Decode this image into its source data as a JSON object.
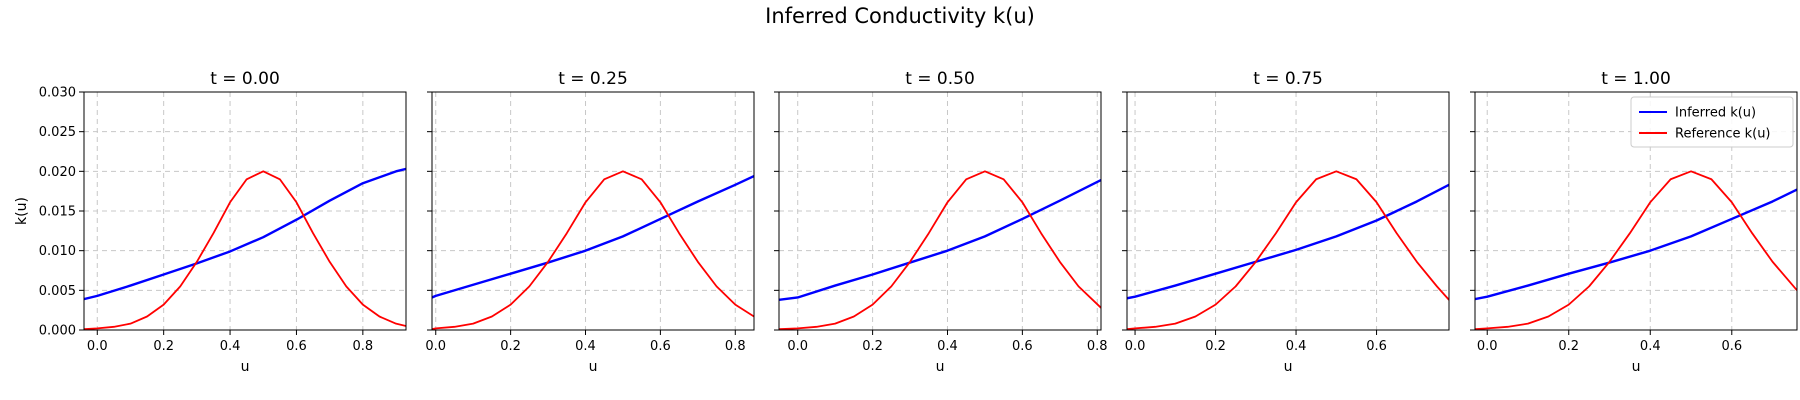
{
  "figure_title": "Inferred Conductivity k(u)",
  "colors": {
    "inferred": "#0000ff",
    "reference": "#ff0000",
    "grid": "#c8c8c8"
  },
  "chart_data": [
    {
      "type": "line",
      "title": "t = 0.00",
      "xlabel": "u",
      "ylabel": "k(u)",
      "xlim": [
        -0.04,
        0.93
      ],
      "ylim": [
        0,
        0.03
      ],
      "xticks": [
        "0.0",
        "0.2",
        "0.4",
        "0.6",
        "0.8"
      ],
      "yticks": [
        "0.000",
        "0.005",
        "0.010",
        "0.015",
        "0.020",
        "0.025",
        "0.030"
      ],
      "grid": true,
      "series": [
        {
          "name": "Inferred k(u)",
          "color": "#0000ff",
          "x": [
            -0.04,
            0.0,
            0.1,
            0.2,
            0.3,
            0.4,
            0.5,
            0.6,
            0.7,
            0.8,
            0.9,
            0.93
          ],
          "y": [
            0.0039,
            0.0043,
            0.0056,
            0.007,
            0.0084,
            0.0099,
            0.0117,
            0.0139,
            0.0163,
            0.0185,
            0.02,
            0.0203
          ]
        },
        {
          "name": "Reference k(u)",
          "color": "#ff0000",
          "x": [
            -0.04,
            0.0,
            0.05,
            0.1,
            0.15,
            0.2,
            0.25,
            0.3,
            0.35,
            0.4,
            0.45,
            0.5,
            0.55,
            0.6,
            0.65,
            0.7,
            0.75,
            0.8,
            0.85,
            0.9,
            0.93
          ],
          "y": [
            0.0001,
            0.0002,
            0.0004,
            0.0008,
            0.0017,
            0.0032,
            0.0055,
            0.0086,
            0.0122,
            0.0161,
            0.019,
            0.02,
            0.019,
            0.0161,
            0.0122,
            0.0086,
            0.0055,
            0.0032,
            0.0017,
            0.0008,
            0.0005
          ]
        }
      ]
    },
    {
      "type": "line",
      "title": "t = 0.25",
      "xlabel": "u",
      "ylabel": "",
      "xlim": [
        -0.01,
        0.85
      ],
      "ylim": [
        0,
        0.03
      ],
      "xticks": [
        "0.0",
        "0.2",
        "0.4",
        "0.6",
        "0.8"
      ],
      "yticks": [
        "",
        "",
        "",
        "",
        "",
        "",
        ""
      ],
      "grid": true,
      "series": [
        {
          "name": "Inferred k(u)",
          "color": "#0000ff",
          "x": [
            -0.01,
            0.0,
            0.1,
            0.2,
            0.3,
            0.4,
            0.5,
            0.6,
            0.7,
            0.8,
            0.85
          ],
          "y": [
            0.0041,
            0.0043,
            0.0057,
            0.0071,
            0.0085,
            0.01,
            0.0118,
            0.014,
            0.0162,
            0.0183,
            0.0194
          ]
        },
        {
          "name": "Reference k(u)",
          "color": "#ff0000",
          "x": [
            -0.01,
            0.0,
            0.05,
            0.1,
            0.15,
            0.2,
            0.25,
            0.3,
            0.35,
            0.4,
            0.45,
            0.5,
            0.55,
            0.6,
            0.65,
            0.7,
            0.75,
            0.8,
            0.85
          ],
          "y": [
            0.0001,
            0.0002,
            0.0004,
            0.0008,
            0.0017,
            0.0032,
            0.0055,
            0.0086,
            0.0122,
            0.0161,
            0.019,
            0.02,
            0.019,
            0.0161,
            0.0122,
            0.0086,
            0.0055,
            0.0032,
            0.0017
          ]
        }
      ]
    },
    {
      "type": "line",
      "title": "t = 0.50",
      "xlabel": "u",
      "ylabel": "",
      "xlim": [
        -0.05,
        0.81
      ],
      "ylim": [
        0,
        0.03
      ],
      "xticks": [
        "0.0",
        "0.2",
        "0.4",
        "0.6",
        "0.8"
      ],
      "yticks": [
        "",
        "",
        "",
        "",
        "",
        "",
        ""
      ],
      "grid": true,
      "series": [
        {
          "name": "Inferred k(u)",
          "color": "#0000ff",
          "x": [
            -0.05,
            0.0,
            0.1,
            0.2,
            0.3,
            0.4,
            0.5,
            0.6,
            0.7,
            0.81
          ],
          "y": [
            0.0038,
            0.0041,
            0.0056,
            0.007,
            0.0085,
            0.01,
            0.0118,
            0.014,
            0.0163,
            0.0189
          ]
        },
        {
          "name": "Reference k(u)",
          "color": "#ff0000",
          "x": [
            -0.05,
            0.0,
            0.05,
            0.1,
            0.15,
            0.2,
            0.25,
            0.3,
            0.35,
            0.4,
            0.45,
            0.5,
            0.55,
            0.6,
            0.65,
            0.7,
            0.75,
            0.81
          ],
          "y": [
            0.0001,
            0.0002,
            0.0004,
            0.0008,
            0.0017,
            0.0032,
            0.0055,
            0.0086,
            0.0122,
            0.0161,
            0.019,
            0.02,
            0.019,
            0.0161,
            0.0122,
            0.0086,
            0.0055,
            0.0028
          ]
        }
      ]
    },
    {
      "type": "line",
      "title": "t = 0.75",
      "xlabel": "u",
      "ylabel": "",
      "xlim": [
        -0.02,
        0.78
      ],
      "ylim": [
        0,
        0.03
      ],
      "xticks": [
        "0.0",
        "0.2",
        "0.4",
        "0.6"
      ],
      "yticks": [
        "",
        "",
        "",
        "",
        "",
        "",
        ""
      ],
      "grid": true,
      "series": [
        {
          "name": "Inferred k(u)",
          "color": "#0000ff",
          "x": [
            -0.02,
            0.0,
            0.1,
            0.2,
            0.3,
            0.4,
            0.5,
            0.6,
            0.7,
            0.78
          ],
          "y": [
            0.004,
            0.0042,
            0.0056,
            0.0071,
            0.0086,
            0.0101,
            0.0118,
            0.0138,
            0.0162,
            0.0183
          ]
        },
        {
          "name": "Reference k(u)",
          "color": "#ff0000",
          "x": [
            -0.02,
            0.0,
            0.05,
            0.1,
            0.15,
            0.2,
            0.25,
            0.3,
            0.35,
            0.4,
            0.45,
            0.5,
            0.55,
            0.6,
            0.65,
            0.7,
            0.75,
            0.78
          ],
          "y": [
            0.0001,
            0.0002,
            0.0004,
            0.0008,
            0.0017,
            0.0032,
            0.0055,
            0.0086,
            0.0122,
            0.0161,
            0.019,
            0.02,
            0.019,
            0.0161,
            0.0122,
            0.0086,
            0.0055,
            0.0038
          ]
        }
      ]
    },
    {
      "type": "line",
      "title": "t = 1.00",
      "xlabel": "u",
      "ylabel": "",
      "xlim": [
        -0.03,
        0.76
      ],
      "ylim": [
        0,
        0.03
      ],
      "xticks": [
        "0.0",
        "0.2",
        "0.4",
        "0.6"
      ],
      "yticks": [
        "",
        "",
        "",
        "",
        "",
        "",
        ""
      ],
      "grid": true,
      "legend": "upper right",
      "series": [
        {
          "name": "Inferred k(u)",
          "color": "#0000ff",
          "x": [
            -0.03,
            0.0,
            0.1,
            0.2,
            0.3,
            0.4,
            0.5,
            0.6,
            0.7,
            0.76
          ],
          "y": [
            0.0039,
            0.0042,
            0.0056,
            0.0071,
            0.0085,
            0.01,
            0.0118,
            0.014,
            0.0162,
            0.0177
          ]
        },
        {
          "name": "Reference k(u)",
          "color": "#ff0000",
          "x": [
            -0.03,
            0.0,
            0.05,
            0.1,
            0.15,
            0.2,
            0.25,
            0.3,
            0.35,
            0.4,
            0.45,
            0.5,
            0.55,
            0.6,
            0.65,
            0.7,
            0.76
          ],
          "y": [
            0.0001,
            0.0002,
            0.0004,
            0.0008,
            0.0017,
            0.0032,
            0.0055,
            0.0086,
            0.0122,
            0.0161,
            0.019,
            0.02,
            0.019,
            0.0161,
            0.0122,
            0.0086,
            0.005
          ]
        }
      ]
    }
  ]
}
